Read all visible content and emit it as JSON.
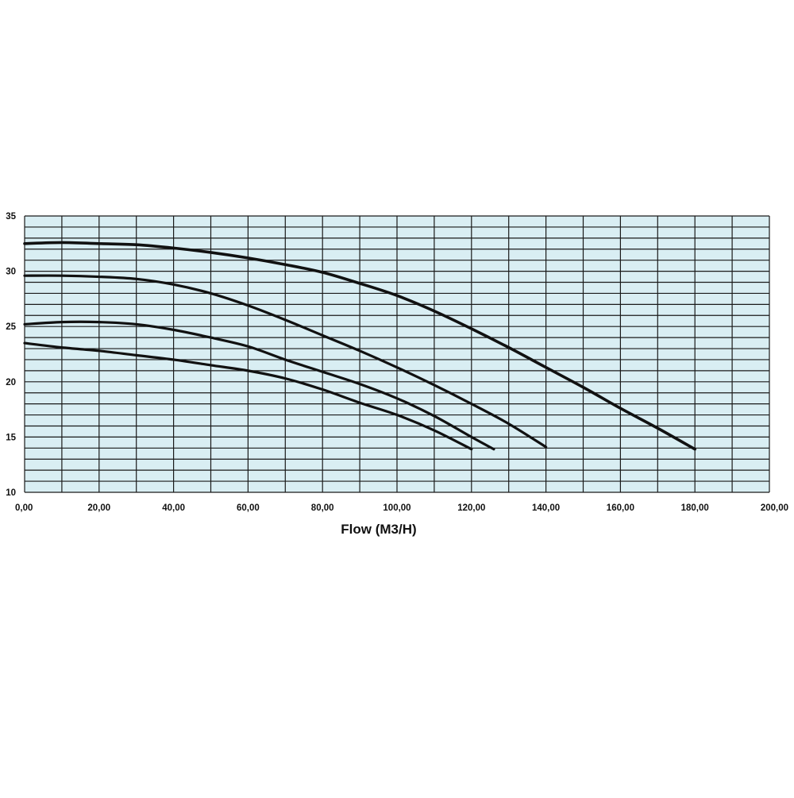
{
  "chart_data": {
    "type": "line",
    "title": "",
    "xlabel": "Flow (M3/H)",
    "ylabel": "",
    "xlim": [
      0,
      200
    ],
    "ylim": [
      10,
      35
    ],
    "x_ticks": [
      {
        "value": 0,
        "label": "0,00"
      },
      {
        "value": 20,
        "label": "20,00"
      },
      {
        "value": 40,
        "label": "40,00"
      },
      {
        "value": 60,
        "label": "60,00"
      },
      {
        "value": 80,
        "label": "80,00"
      },
      {
        "value": 100,
        "label": "100,00"
      },
      {
        "value": 120,
        "label": "120,00"
      },
      {
        "value": 140,
        "label": "140,00"
      },
      {
        "value": 160,
        "label": "160,00"
      },
      {
        "value": 180,
        "label": "180,00"
      },
      {
        "value": 200,
        "label": "200,00"
      }
    ],
    "y_ticks": [
      {
        "value": 10,
        "label": "10"
      },
      {
        "value": 15,
        "label": "15"
      },
      {
        "value": 20,
        "label": "20"
      },
      {
        "value": 25,
        "label": "25"
      },
      {
        "value": 30,
        "label": "30"
      },
      {
        "value": 35,
        "label": "35"
      }
    ],
    "x_grid_step": 10,
    "y_grid_step": 1,
    "grid": true,
    "legend": "none",
    "colors": {
      "plot_background": "#d9eef3",
      "grid": "#1a1a1a",
      "line": "#111111"
    },
    "series": [
      {
        "x": [
          0,
          10,
          20,
          30,
          40,
          50,
          60,
          70,
          80,
          90,
          100,
          110,
          120,
          130,
          140,
          150,
          160,
          170,
          180
        ],
        "values": [
          32.5,
          32.6,
          32.5,
          32.4,
          32.1,
          31.7,
          31.2,
          30.6,
          29.9,
          28.9,
          27.8,
          26.4,
          24.8,
          23.1,
          21.3,
          19.5,
          17.6,
          15.8,
          13.9
        ]
      },
      {
        "x": [
          0,
          10,
          20,
          30,
          40,
          50,
          60,
          70,
          80,
          90,
          100,
          110,
          120,
          130,
          140
        ],
        "values": [
          29.6,
          29.6,
          29.5,
          29.3,
          28.8,
          28.0,
          26.9,
          25.6,
          24.2,
          22.8,
          21.3,
          19.7,
          18.0,
          16.2,
          14.1
        ]
      },
      {
        "x": [
          0,
          10,
          20,
          30,
          40,
          50,
          60,
          70,
          80,
          90,
          100,
          110,
          120,
          126
        ],
        "values": [
          25.2,
          25.4,
          25.4,
          25.2,
          24.7,
          24.0,
          23.2,
          22.0,
          20.9,
          19.8,
          18.5,
          16.9,
          15.0,
          13.9
        ]
      },
      {
        "x": [
          0,
          10,
          20,
          30,
          40,
          50,
          60,
          70,
          80,
          90,
          100,
          110,
          120
        ],
        "values": [
          23.5,
          23.1,
          22.8,
          22.4,
          22.0,
          21.5,
          21.0,
          20.3,
          19.3,
          18.1,
          17.0,
          15.6,
          13.9
        ]
      }
    ]
  }
}
